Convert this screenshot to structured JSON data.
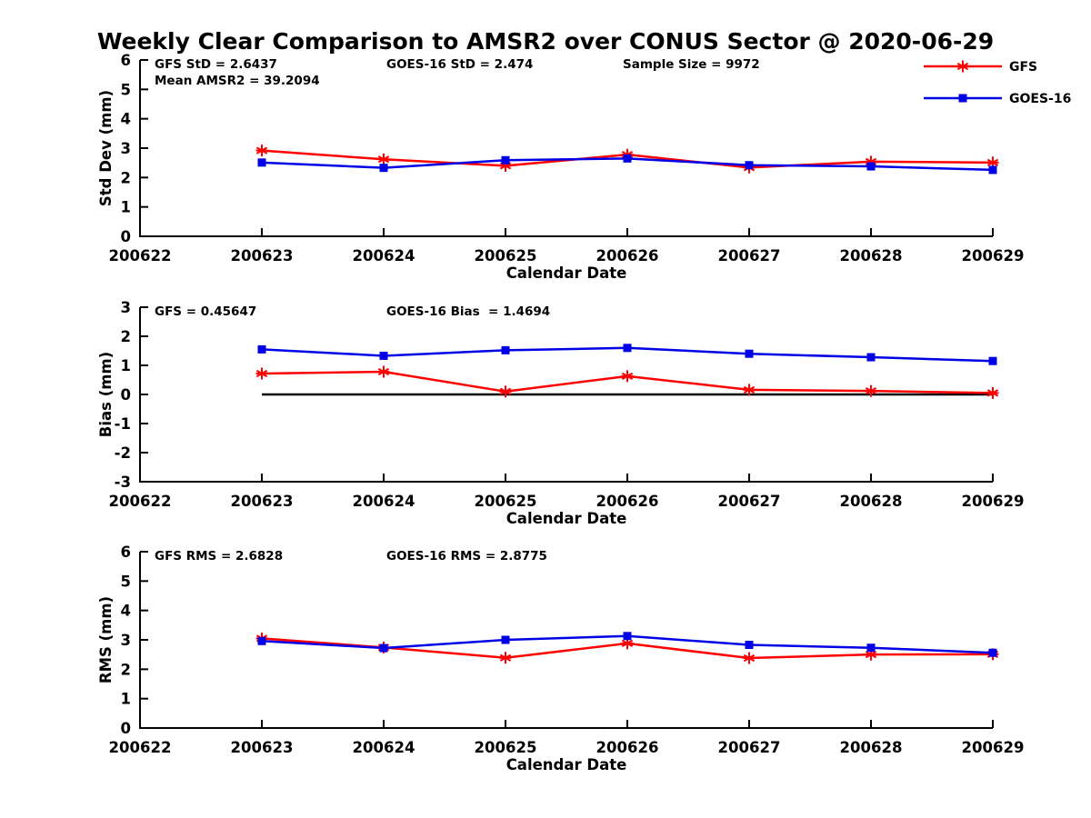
{
  "title": "Weekly Clear Comparison to AMSR2 over CONUS Sector @ 2020-06-29",
  "colors": {
    "gfs": "#ff0000",
    "goes16": "#0000e6",
    "axis": "#000000",
    "zero_line": "#000000"
  },
  "legend": {
    "position": "top-right",
    "entries": [
      {
        "label": "GFS",
        "color": "#ff0000",
        "marker": "star"
      },
      {
        "label": "GOES-16",
        "color": "#0000e6",
        "marker": "square"
      }
    ]
  },
  "chart_data": [
    {
      "id": "stddev",
      "type": "line",
      "xlabel": "Calendar Date",
      "ylabel": "Std Dev (mm)",
      "ylim": [
        0,
        6
      ],
      "ytick_step": 1,
      "grid": false,
      "x_ticks": [
        "200622",
        "200623",
        "200624",
        "200625",
        "200626",
        "200627",
        "200628",
        "200629"
      ],
      "categories": [
        "200623",
        "200624",
        "200625",
        "200626",
        "200627",
        "200628",
        "200629"
      ],
      "series": [
        {
          "name": "GFS",
          "color": "#ff0000",
          "marker": "star",
          "values": [
            2.92,
            2.62,
            2.4,
            2.78,
            2.34,
            2.54,
            2.51
          ]
        },
        {
          "name": "GOES-16",
          "color": "#0000e6",
          "marker": "square",
          "values": [
            2.51,
            2.33,
            2.59,
            2.65,
            2.42,
            2.38,
            2.26
          ]
        }
      ],
      "annotations": [
        {
          "text": "GFS StD = 2.6437",
          "col": 0,
          "row": 0
        },
        {
          "text": "Mean AMSR2 = 39.2094",
          "col": 0,
          "row": 1
        },
        {
          "text": "GOES-16 StD = 2.474",
          "col": 1,
          "row": 0
        },
        {
          "text": "Sample Size = 9972",
          "col": 2,
          "row": 0
        }
      ],
      "zero_line": false
    },
    {
      "id": "bias",
      "type": "line",
      "xlabel": "Calendar Date",
      "ylabel": "Bias (mm)",
      "ylim": [
        -3,
        3
      ],
      "ytick_step": 1,
      "grid": false,
      "x_ticks": [
        "200622",
        "200623",
        "200624",
        "200625",
        "200626",
        "200627",
        "200628",
        "200629"
      ],
      "categories": [
        "200623",
        "200624",
        "200625",
        "200626",
        "200627",
        "200628",
        "200629"
      ],
      "series": [
        {
          "name": "GFS",
          "color": "#ff0000",
          "marker": "star",
          "values": [
            0.72,
            0.78,
            0.1,
            0.63,
            0.16,
            0.12,
            0.05
          ]
        },
        {
          "name": "GOES-16",
          "color": "#0000e6",
          "marker": "square",
          "values": [
            1.55,
            1.33,
            1.52,
            1.6,
            1.4,
            1.28,
            1.15
          ]
        }
      ],
      "annotations": [
        {
          "text": "GFS = 0.45647",
          "col": 0,
          "row": 0
        },
        {
          "text": "GOES-16 Bias  = 1.4694",
          "col": 1,
          "row": 0
        }
      ],
      "zero_line": true
    },
    {
      "id": "rms",
      "type": "line",
      "xlabel": "Calendar Date",
      "ylabel": "RMS (mm)",
      "ylim": [
        0,
        6
      ],
      "ytick_step": 1,
      "grid": false,
      "x_ticks": [
        "200622",
        "200623",
        "200624",
        "200625",
        "200626",
        "200627",
        "200628",
        "200629"
      ],
      "categories": [
        "200623",
        "200624",
        "200625",
        "200626",
        "200627",
        "200628",
        "200629"
      ],
      "series": [
        {
          "name": "GFS",
          "color": "#ff0000",
          "marker": "star",
          "values": [
            3.05,
            2.74,
            2.39,
            2.88,
            2.38,
            2.5,
            2.51
          ]
        },
        {
          "name": "GOES-16",
          "color": "#0000e6",
          "marker": "square",
          "values": [
            2.96,
            2.72,
            3.0,
            3.13,
            2.83,
            2.73,
            2.56
          ]
        }
      ],
      "annotations": [
        {
          "text": "GFS RMS = 2.6828",
          "col": 0,
          "row": 0
        },
        {
          "text": "GOES-16 RMS = 2.8775",
          "col": 1,
          "row": 0
        }
      ],
      "zero_line": false
    }
  ]
}
